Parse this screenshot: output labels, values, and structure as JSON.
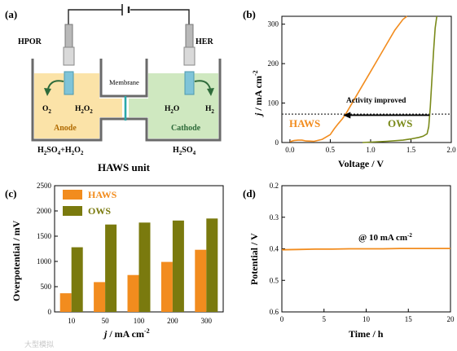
{
  "panels": {
    "a": {
      "label": "(a)"
    },
    "b": {
      "label": "(b)"
    },
    "c": {
      "label": "(c)"
    },
    "d": {
      "label": "(d)"
    }
  },
  "diagram": {
    "left_reaction": "HPOR",
    "right_reaction": "HER",
    "membrane": "Membrane",
    "anode": "Anode",
    "cathode": "Cathode",
    "anode_species_in": "O",
    "anode_species_in_sub": "2",
    "anode_species_out": "H",
    "anode_species_out_sub": "2",
    "anode_species_out_o": "O",
    "anode_species_out_sub2": "2",
    "cathode_species_in": "H",
    "cathode_species_in_sub": "2",
    "cathode_species_in_o": "O",
    "cathode_species_out": "H",
    "cathode_species_out_sub": "2",
    "anolyte": "H",
    "anolyte_sub1": "2",
    "anolyte_mid": "SO",
    "anolyte_sub2": "4",
    "anolyte_plus": "+H",
    "anolyte_sub3": "2",
    "anolyte_o": "O",
    "anolyte_sub4": "2",
    "catholyte": "H",
    "catholyte_sub1": "2",
    "catholyte_mid": "SO",
    "catholyte_sub2": "4",
    "caption": "HAWS unit",
    "colors": {
      "anode_fill": "#fbe3a8",
      "cathode_fill": "#cfe8c0",
      "electrode": "#7fc4d8",
      "arrow": "#2e6b3a",
      "membrane": "#2aa8a8"
    }
  },
  "chart_data": [
    {
      "panel": "b",
      "type": "line",
      "xlabel": "Voltage / V",
      "ylabel_italic": "j",
      "ylabel_rest": " / mA cm",
      "ylabel_sup": "-2",
      "xlim": [
        -0.1,
        2.0
      ],
      "ylim": [
        0,
        320
      ],
      "xticks": [
        "0.0",
        "0.5",
        "1.0",
        "1.5",
        "2.0"
      ],
      "xtick_values": [
        0.0,
        0.5,
        1.0,
        1.5,
        2.0
      ],
      "yticks": [
        "0",
        "100",
        "200",
        "300"
      ],
      "ytick_values": [
        0,
        100,
        200,
        300
      ],
      "series": [
        {
          "name": "HAWS",
          "color": "#f28c1e",
          "x": [
            0.0,
            0.05,
            0.1,
            0.15,
            0.2,
            0.3,
            0.4,
            0.5,
            0.55,
            0.6,
            0.65,
            0.7,
            0.8,
            0.9,
            1.0,
            1.1,
            1.2,
            1.3,
            1.4,
            1.45
          ],
          "y": [
            2,
            5,
            6,
            6,
            4,
            3,
            8,
            20,
            35,
            48,
            60,
            75,
            110,
            145,
            180,
            215,
            250,
            285,
            312,
            320
          ]
        },
        {
          "name": "OWS",
          "color": "#7a8a1a",
          "x": [
            0.9,
            1.0,
            1.2,
            1.4,
            1.5,
            1.6,
            1.65,
            1.7,
            1.72,
            1.74,
            1.76,
            1.78,
            1.8,
            1.82
          ],
          "y": [
            0,
            1,
            3,
            6,
            9,
            13,
            16,
            22,
            40,
            90,
            160,
            230,
            290,
            320
          ]
        }
      ],
      "reference_line": {
        "y": 72,
        "style": "dotted"
      },
      "annotation": "Activity improved",
      "arrow": {
        "from_x": 1.73,
        "to_x": 0.66,
        "y": 92
      }
    },
    {
      "panel": "c",
      "type": "bar",
      "xlabel_italic": "j",
      "xlabel_rest": " / mA cm",
      "xlabel_sup": "-2",
      "ylabel": "Overpotential / mV",
      "ylim": [
        0,
        2500
      ],
      "yticks": [
        "0",
        "500",
        "1000",
        "1500",
        "2000",
        "2500"
      ],
      "ytick_values": [
        0,
        500,
        1000,
        1500,
        2000,
        2500
      ],
      "categories": [
        "10",
        "50",
        "100",
        "200",
        "300"
      ],
      "series": [
        {
          "name": "HAWS",
          "color": "#f28c1e",
          "values": [
            370,
            590,
            730,
            990,
            1230
          ]
        },
        {
          "name": "OWS",
          "color": "#7a7a0e",
          "values": [
            1280,
            1730,
            1770,
            1810,
            1850
          ]
        }
      ],
      "legend": "top-left"
    },
    {
      "panel": "d",
      "type": "line",
      "xlabel": "Time / h",
      "ylabel": "Potential / V",
      "xlim": [
        0,
        20
      ],
      "ylim": [
        0.6,
        0.2
      ],
      "inverted_y": true,
      "xticks": [
        "0",
        "5",
        "10",
        "15",
        "20"
      ],
      "xtick_values": [
        0,
        5,
        10,
        15,
        20
      ],
      "yticks": [
        "0.2",
        "0.3",
        "0.4",
        "0.5",
        "0.6"
      ],
      "ytick_values": [
        0.2,
        0.3,
        0.4,
        0.5,
        0.6
      ],
      "series": [
        {
          "color": "#f28c1e",
          "x": [
            0,
            2,
            4,
            6,
            8,
            10,
            12,
            14,
            16,
            18,
            20
          ],
          "y": [
            0.403,
            0.402,
            0.401,
            0.401,
            0.4,
            0.4,
            0.4,
            0.399,
            0.399,
            0.399,
            0.399
          ]
        }
      ],
      "annotation_prefix": "@ 10 mA cm",
      "annotation_sup": "-2"
    }
  ],
  "watermark": "大型模拟"
}
